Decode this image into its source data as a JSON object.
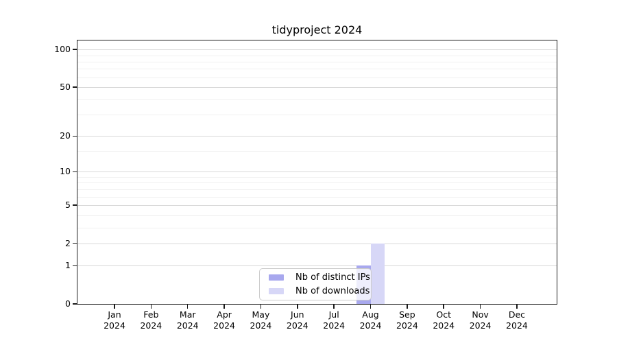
{
  "chart_data": {
    "type": "bar",
    "title": "tidyproject 2024",
    "categories": [
      "Jan",
      "Feb",
      "Mar",
      "Apr",
      "May",
      "Jun",
      "Jul",
      "Aug",
      "Sep",
      "Oct",
      "Nov",
      "Dec"
    ],
    "year_suffix": "2024",
    "series": [
      {
        "name": "Nb of distinct IPs",
        "color": "#a8a8ee",
        "values": [
          0,
          0,
          0,
          0,
          0,
          0,
          0,
          1,
          0,
          0,
          0,
          0
        ]
      },
      {
        "name": "Nb of downloads",
        "color": "#d7d7f7",
        "values": [
          0,
          0,
          0,
          0,
          0,
          0,
          0,
          2,
          0,
          0,
          0,
          0
        ]
      }
    ],
    "xlabel": "",
    "ylabel": "",
    "yscale": "log1p",
    "ylim": [
      0,
      118
    ],
    "yticks": [
      0,
      1,
      2,
      5,
      10,
      20,
      50,
      100
    ],
    "yminorticks": [
      3,
      4,
      6,
      7,
      8,
      9,
      15,
      30,
      40,
      60,
      70,
      80,
      90
    ],
    "grid": true,
    "legend_position": "lower center",
    "background_color": "#ffffff",
    "frame_color": "#1a1a1a",
    "major_grid_color": "#d8d8d8",
    "minor_grid_color": "#f0f0f0"
  }
}
